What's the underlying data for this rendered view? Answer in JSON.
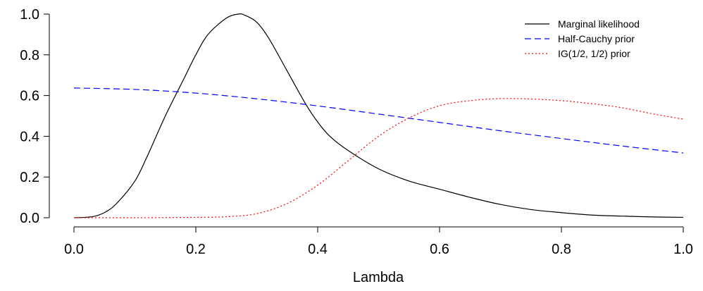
{
  "chart_data": {
    "type": "line",
    "title": "",
    "xlabel": "Lambda",
    "ylabel": "",
    "xlim": [
      0,
      1
    ],
    "ylim": [
      0,
      1
    ],
    "x_ticks": [
      0.0,
      0.2,
      0.4,
      0.6,
      0.8,
      1.0
    ],
    "x_tick_labels": [
      "0.0",
      "0.2",
      "0.4",
      "0.6",
      "0.8",
      "1.0"
    ],
    "y_ticks": [
      0.0,
      0.2,
      0.4,
      0.6,
      0.8,
      1.0
    ],
    "y_tick_labels": [
      "0.0",
      "0.2",
      "0.4",
      "0.6",
      "0.8",
      "1.0"
    ],
    "grid": false,
    "legend_position": "top-right",
    "series": [
      {
        "name": "Marginal likelihood",
        "color": "#000000",
        "line_style": "solid",
        "x": [
          0.0,
          0.03,
          0.05,
          0.07,
          0.1,
          0.12,
          0.15,
          0.18,
          0.2,
          0.22,
          0.25,
          0.27,
          0.28,
          0.3,
          0.32,
          0.35,
          0.38,
          0.4,
          0.42,
          0.45,
          0.5,
          0.55,
          0.6,
          0.65,
          0.7,
          0.75,
          0.8,
          0.85,
          0.9,
          0.95,
          1.0
        ],
        "y": [
          0.0,
          0.005,
          0.025,
          0.07,
          0.18,
          0.3,
          0.5,
          0.68,
          0.8,
          0.9,
          0.98,
          1.0,
          0.995,
          0.96,
          0.88,
          0.72,
          0.56,
          0.47,
          0.4,
          0.33,
          0.24,
          0.18,
          0.14,
          0.1,
          0.065,
          0.04,
          0.025,
          0.013,
          0.008,
          0.004,
          0.002
        ]
      },
      {
        "name": "Half-Cauchy prior",
        "color": "#0000ff",
        "line_style": "dashed",
        "x": [
          0.0,
          0.1,
          0.2,
          0.3,
          0.4,
          0.5,
          0.6,
          0.7,
          0.8,
          0.9,
          1.0
        ],
        "y": [
          0.637,
          0.63,
          0.612,
          0.584,
          0.549,
          0.509,
          0.468,
          0.427,
          0.389,
          0.352,
          0.318
        ]
      },
      {
        "name": "IG(1/2, 1/2) prior",
        "color": "#ff0000",
        "line_style": "dotted",
        "x": [
          0.0,
          0.1,
          0.2,
          0.25,
          0.3,
          0.35,
          0.4,
          0.45,
          0.5,
          0.55,
          0.6,
          0.65,
          0.7,
          0.75,
          0.8,
          0.85,
          0.9,
          0.95,
          1.0
        ],
        "y": [
          0.0,
          0.0,
          0.002,
          0.005,
          0.02,
          0.07,
          0.16,
          0.28,
          0.4,
          0.49,
          0.55,
          0.575,
          0.585,
          0.583,
          0.575,
          0.56,
          0.54,
          0.51,
          0.484
        ]
      }
    ]
  }
}
